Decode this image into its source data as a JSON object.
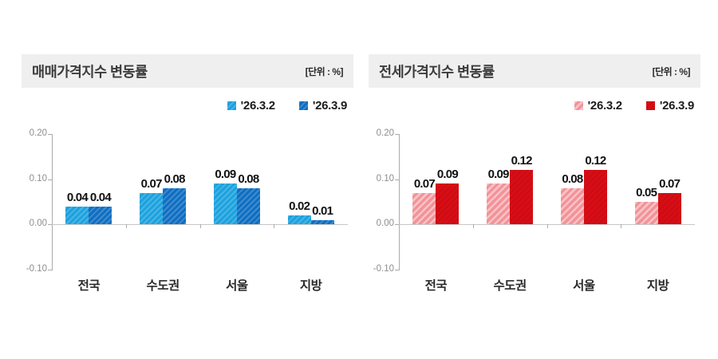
{
  "chart_data": [
    {
      "type": "bar",
      "title": "매매가격지수 변동률",
      "unit_label": "[단위 : %]",
      "categories": [
        "전국",
        "수도권",
        "서울",
        "지방"
      ],
      "series": [
        {
          "name": "'26.3.2",
          "values": [
            0.04,
            0.07,
            0.09,
            0.02
          ],
          "color": "#1CA2DE",
          "hatch": "soft"
        },
        {
          "name": "'26.3.9",
          "values": [
            0.04,
            0.08,
            0.08,
            0.01
          ],
          "color": "#0F6EC2",
          "hatch": "soft"
        }
      ],
      "yticks": [
        0.2,
        0.1,
        0.0,
        -0.1
      ],
      "ylim": [
        -0.1,
        0.2
      ],
      "grid": false,
      "legend_position": "top-right",
      "value_labels": true
    },
    {
      "type": "bar",
      "title": "전세가격지수 변동률",
      "unit_label": "[단위 : %]",
      "categories": [
        "전국",
        "수도권",
        "서울",
        "지방"
      ],
      "series": [
        {
          "name": "'26.3.2",
          "values": [
            0.07,
            0.09,
            0.08,
            0.05
          ],
          "color": "#F39298",
          "hatch": "strong"
        },
        {
          "name": "'26.3.9",
          "values": [
            0.09,
            0.12,
            0.12,
            0.07
          ],
          "color": "#D90D15",
          "hatch": "dark"
        }
      ],
      "yticks": [
        0.2,
        0.1,
        0.0,
        -0.1
      ],
      "ylim": [
        -0.1,
        0.2
      ],
      "grid": false,
      "legend_position": "top-right",
      "value_labels": true
    }
  ]
}
